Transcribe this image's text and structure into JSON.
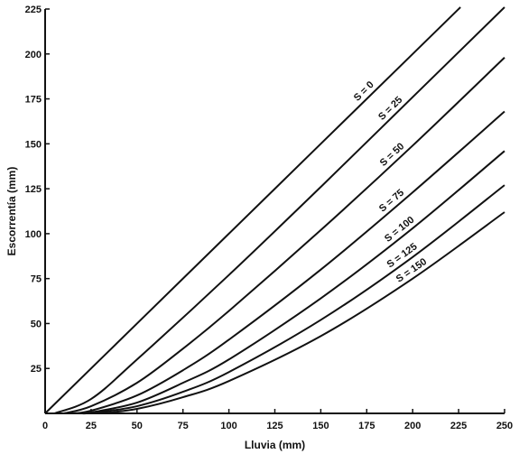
{
  "chart_data": {
    "type": "line",
    "title": "",
    "xlabel": "Lluvia (mm)",
    "ylabel": "Escorrentía (mm)",
    "xlim": [
      0,
      250
    ],
    "ylim": [
      0,
      225
    ],
    "xticks": [
      0,
      25,
      50,
      75,
      100,
      125,
      150,
      175,
      200,
      225,
      250
    ],
    "yticks": [
      25,
      50,
      75,
      100,
      125,
      150,
      175,
      200,
      225
    ],
    "grid": false,
    "series": [
      {
        "name": "S = 0",
        "S": 0,
        "x": [
          0,
          50,
          100,
          150,
          200,
          226
        ],
        "y": [
          0,
          50,
          100,
          150,
          200,
          226
        ]
      },
      {
        "name": "S = 25",
        "S": 25,
        "x": [
          5,
          25,
          50,
          100,
          150,
          200,
          250
        ],
        "y": [
          0,
          8,
          30,
          77,
          126,
          176,
          226
        ]
      },
      {
        "name": "S = 50",
        "S": 50,
        "x": [
          10,
          25,
          50,
          75,
          100,
          150,
          200,
          250
        ],
        "y": [
          0,
          4,
          17,
          36,
          57,
          102,
          149,
          198
        ]
      },
      {
        "name": "S = 75",
        "S": 75,
        "x": [
          15,
          25,
          50,
          75,
          100,
          150,
          200,
          250
        ],
        "y": [
          0,
          1.5,
          10,
          24,
          41,
          80,
          123,
          168
        ]
      },
      {
        "name": "S = 100",
        "S": 100,
        "x": [
          20,
          25,
          50,
          75,
          100,
          150,
          200,
          250
        ],
        "y": [
          0,
          0.5,
          6,
          17,
          30,
          64,
          103,
          146
        ]
      },
      {
        "name": "S = 125",
        "S": 125,
        "x": [
          25,
          50,
          75,
          100,
          150,
          200,
          250
        ],
        "y": [
          0,
          4,
          12,
          23,
          52,
          87,
          127
        ]
      },
      {
        "name": "S = 150",
        "S": 150,
        "x": [
          30,
          50,
          75,
          100,
          150,
          200,
          250
        ],
        "y": [
          0,
          2.5,
          9,
          18,
          43,
          75,
          112
        ]
      }
    ]
  }
}
